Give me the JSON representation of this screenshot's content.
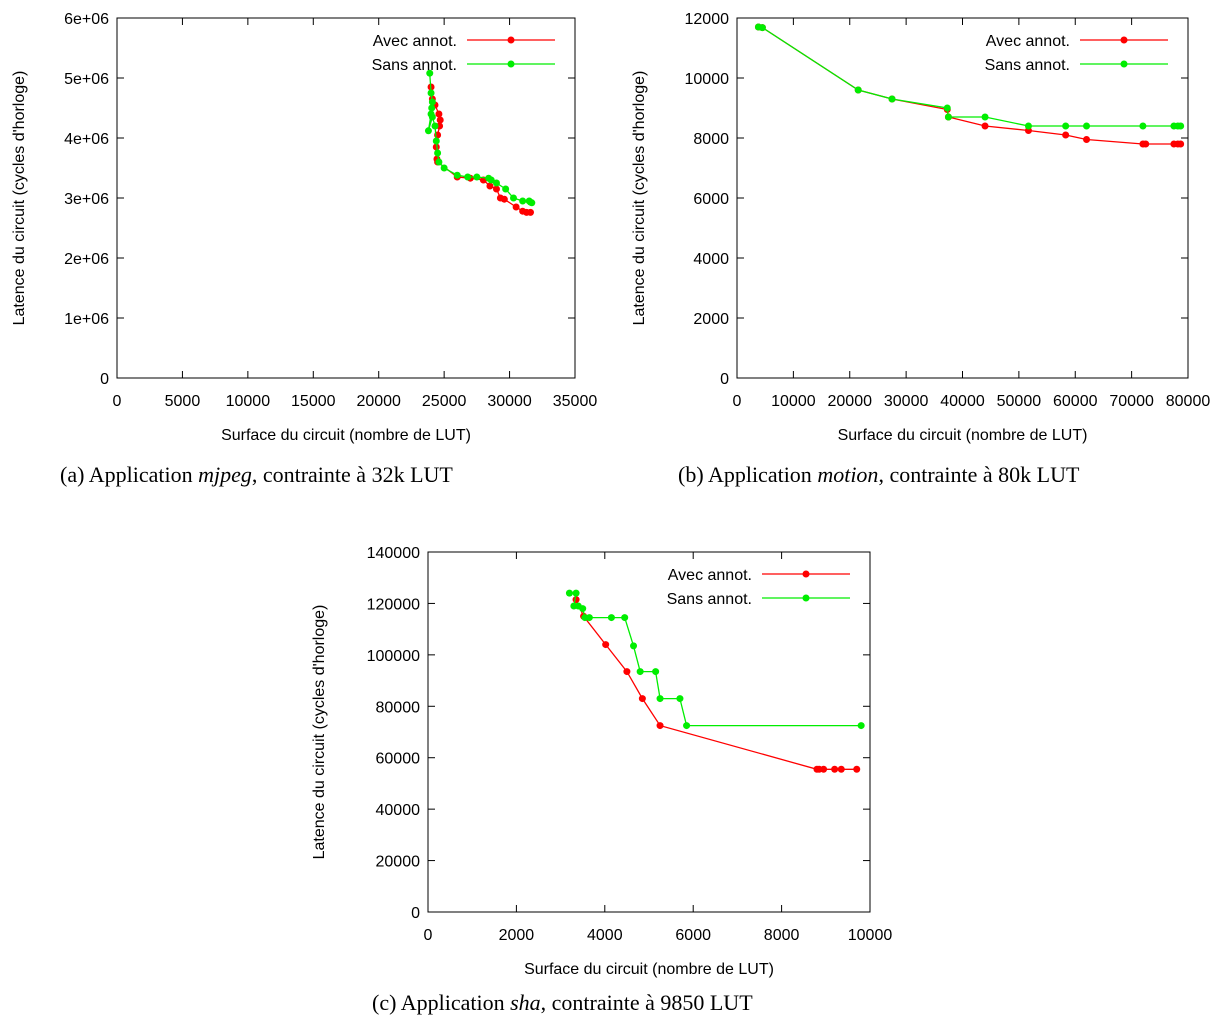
{
  "chart_data": [
    {
      "type": "line",
      "caption": {
        "prefix": "(a)  Application ",
        "app": "mjpeg",
        "suffix": ", contrainte à 32k LUT"
      },
      "xlabel": "Surface du circuit (nombre de LUT)",
      "ylabel": "Latence du circuit (cycles d'horloge)",
      "xlim": [
        0,
        35000
      ],
      "ylim": [
        0,
        6000000
      ],
      "xticks": [
        0,
        5000,
        10000,
        15000,
        20000,
        25000,
        30000,
        35000
      ],
      "yticks": [
        0,
        1000000,
        2000000,
        3000000,
        4000000,
        5000000,
        6000000
      ],
      "xtick_labels": [
        "0",
        "5000",
        "10000",
        "15000",
        "20000",
        "25000",
        "30000",
        "35000"
      ],
      "ytick_labels": [
        "0",
        "1e+06",
        "2e+06",
        "3e+06",
        "4e+06",
        "5e+06",
        "6e+06"
      ],
      "legend_position": "top-right",
      "series": [
        {
          "name": "Avec annot.",
          "color": "#ff0000",
          "x": [
            24000,
            24100,
            24300,
            24600,
            24700,
            24650,
            24500,
            24400,
            24450,
            24500,
            26000,
            27000,
            28000,
            28500,
            29000,
            29300,
            29600,
            30500,
            31000,
            31300,
            31600
          ],
          "y": [
            4850000,
            4650000,
            4550000,
            4400000,
            4300000,
            4200000,
            4050000,
            3850000,
            3650000,
            3600000,
            3350000,
            3330000,
            3300000,
            3200000,
            3150000,
            3000000,
            2980000,
            2850000,
            2780000,
            2760000,
            2760000
          ]
        },
        {
          "name": "Sans annot.",
          "color": "#00ee00",
          "x": [
            23900,
            24000,
            24100,
            24050,
            24000,
            23800,
            24100,
            24300,
            24400,
            24500,
            24600,
            25000,
            26000,
            26800,
            27500,
            28400,
            28600,
            29000,
            29700,
            30300,
            31000,
            31500,
            31700,
            31600
          ],
          "y": [
            5080000,
            4750000,
            4600000,
            4500000,
            4400000,
            4120000,
            4350000,
            4200000,
            3950000,
            3750000,
            3600000,
            3500000,
            3380000,
            3350000,
            3350000,
            3330000,
            3300000,
            3250000,
            3150000,
            3000000,
            2950000,
            2950000,
            2920000,
            2930000
          ]
        }
      ]
    },
    {
      "type": "line",
      "caption": {
        "prefix": "(b)  Application ",
        "app": "motion",
        "suffix": ", contrainte à 80k LUT"
      },
      "xlabel": "Surface du circuit (nombre de LUT)",
      "ylabel": "Latence du circuit (cycles d'horloge)",
      "xlim": [
        0,
        80000
      ],
      "ylim": [
        0,
        12000
      ],
      "xticks": [
        0,
        10000,
        20000,
        30000,
        40000,
        50000,
        60000,
        70000,
        80000
      ],
      "yticks": [
        0,
        2000,
        4000,
        6000,
        8000,
        10000,
        12000
      ],
      "xtick_labels": [
        "0",
        "10000",
        "20000",
        "30000",
        "40000",
        "50000",
        "60000",
        "70000",
        "80000"
      ],
      "ytick_labels": [
        "0",
        "2000",
        "4000",
        "6000",
        "8000",
        "10000",
        "12000"
      ],
      "legend_position": "top-right",
      "series": [
        {
          "name": "Avec annot.",
          "color": "#ff0000",
          "x": [
            3800,
            4500,
            21500,
            27500,
            37300,
            37500,
            44000,
            51700,
            58300,
            62000,
            72000,
            72500,
            77500,
            78200,
            78700
          ],
          "y": [
            11700,
            11680,
            9600,
            9300,
            8950,
            8700,
            8400,
            8250,
            8100,
            7950,
            7800,
            7800,
            7800,
            7800,
            7800
          ]
        },
        {
          "name": "Sans annot.",
          "color": "#00ee00",
          "x": [
            3800,
            4500,
            21500,
            27500,
            37300,
            37500,
            44000,
            51700,
            58300,
            62000,
            72000,
            77500,
            78200,
            78700
          ],
          "y": [
            11700,
            11680,
            9600,
            9300,
            9000,
            8700,
            8700,
            8400,
            8400,
            8400,
            8400,
            8400,
            8400,
            8400
          ]
        }
      ]
    },
    {
      "type": "line",
      "caption": {
        "prefix": "(c)  Application ",
        "app": "sha",
        "suffix": ", contrainte à 9850 LUT"
      },
      "xlabel": "Surface du circuit (nombre de LUT)",
      "ylabel": "Latence du circuit (cycles d'horloge)",
      "xlim": [
        0,
        10000
      ],
      "ylim": [
        0,
        140000
      ],
      "xticks": [
        0,
        2000,
        4000,
        6000,
        8000,
        10000
      ],
      "yticks": [
        0,
        20000,
        40000,
        60000,
        80000,
        100000,
        120000,
        140000
      ],
      "xtick_labels": [
        "0",
        "2000",
        "4000",
        "6000",
        "8000",
        "10000"
      ],
      "ytick_labels": [
        "0",
        "20000",
        "40000",
        "60000",
        "80000",
        "100000",
        "120000",
        "140000"
      ],
      "legend_position": "top-right",
      "series": [
        {
          "name": "Avec annot.",
          "color": "#ff0000",
          "x": [
            3350,
            3520,
            4020,
            4500,
            4850,
            5250,
            8800,
            8850,
            8950,
            9200,
            9350,
            9700
          ],
          "y": [
            121500,
            115000,
            104000,
            93500,
            83000,
            72500,
            55500,
            55500,
            55500,
            55500,
            55500,
            55500
          ]
        },
        {
          "name": "Sans annot.",
          "color": "#00ee00",
          "x": [
            3200,
            3350,
            3300,
            3400,
            3500,
            3550,
            3650,
            4150,
            4450,
            4650,
            4800,
            5150,
            5250,
            5700,
            5850,
            9800
          ],
          "y": [
            124000,
            124000,
            119000,
            119000,
            118000,
            114500,
            114500,
            114500,
            114500,
            103500,
            93500,
            93500,
            83000,
            83000,
            72500,
            72500
          ]
        }
      ]
    }
  ]
}
